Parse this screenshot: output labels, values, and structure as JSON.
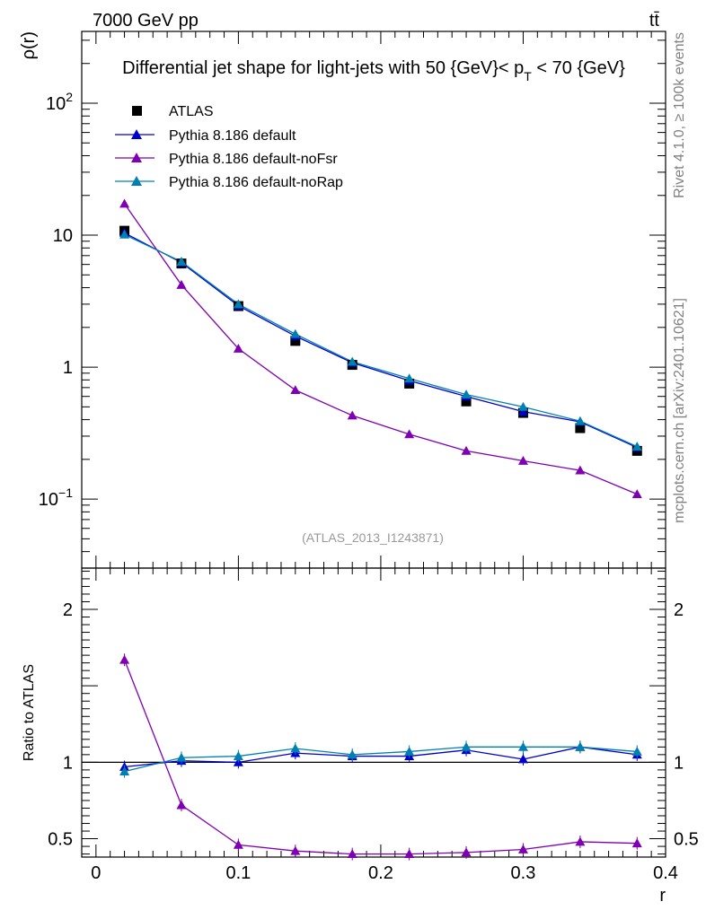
{
  "header": {
    "left": "7000 GeV pp",
    "right": "tt̄"
  },
  "side_labels": {
    "rivet": "Rivet 4.1.0, ≥ 100k events",
    "mcplots": "mcplots.cern.ch [arXiv:2401.10621]"
  },
  "chart_data": [
    {
      "type": "line",
      "panel": "main",
      "title": "Differential jet shape for light-jets with 50 {GeV}< p_T < 70 {GeV}",
      "title_parts": {
        "pre": "Differential jet shape for light-jets with 50 {GeV}< p",
        "sub": "T",
        "post": " < 70 {GeV}"
      },
      "xlabel": "r",
      "ylabel": "ρ(r)",
      "yscale": "log",
      "xlim": [
        -0.01,
        0.4
      ],
      "ylim": [
        0.03,
        350
      ],
      "annotation": "(ATLAS_2013_I1243871)",
      "x_ticks": [
        0,
        0.1,
        0.2,
        0.3,
        0.4
      ],
      "y_tick_labels": [
        {
          "value": 0.1,
          "mantissa": "10",
          "exp": "−1"
        },
        {
          "value": 1,
          "text": "1"
        },
        {
          "value": 10,
          "text": "10"
        },
        {
          "value": 100,
          "mantissa": "10",
          "exp": "2"
        }
      ],
      "x": [
        0.02,
        0.06,
        0.1,
        0.14,
        0.18,
        0.22,
        0.26,
        0.3,
        0.34,
        0.38
      ],
      "series": [
        {
          "name": "ATLAS",
          "marker": "square",
          "color": "#000000",
          "values": [
            10.8,
            6.1,
            2.9,
            1.58,
            1.04,
            0.75,
            0.55,
            0.45,
            0.345,
            0.232
          ]
        },
        {
          "name": "Pythia 8.186 default",
          "marker": "triangle",
          "color": "#0000cc",
          "values": [
            10.4,
            6.2,
            2.92,
            1.72,
            1.08,
            0.79,
            0.6,
            0.46,
            0.385,
            0.246
          ]
        },
        {
          "name": "Pythia 8.186 default-noFsr",
          "marker": "triangle",
          "color": "#7f00b2",
          "values": [
            17.3,
            4.2,
            1.38,
            0.67,
            0.43,
            0.31,
            0.232,
            0.195,
            0.165,
            0.109
          ]
        },
        {
          "name": "Pythia 8.186 default-noRap",
          "marker": "triangle",
          "color": "#0080b2",
          "values": [
            10.1,
            6.3,
            3.0,
            1.78,
            1.1,
            0.82,
            0.62,
            0.5,
            0.39,
            0.25
          ]
        }
      ]
    },
    {
      "type": "line",
      "panel": "ratio",
      "xlabel": "r",
      "ylabel": "Ratio to ATLAS",
      "xlim": [
        -0.01,
        0.4
      ],
      "ylim": [
        0.38,
        2.27
      ],
      "reference_line": 1,
      "x_ticks": [
        0,
        0.1,
        0.2,
        0.3,
        0.4
      ],
      "y_tick_labels": [
        {
          "value": 0.5,
          "text": "0.5"
        },
        {
          "value": 1,
          "text": "1"
        },
        {
          "value": 2,
          "text": "2"
        }
      ],
      "x": [
        0.02,
        0.06,
        0.1,
        0.14,
        0.18,
        0.22,
        0.26,
        0.3,
        0.34,
        0.38
      ],
      "series": [
        {
          "name": "Pythia 8.186 default",
          "marker": "triangle",
          "color": "#0000cc",
          "values": [
            0.97,
            1.01,
            1.0,
            1.06,
            1.04,
            1.04,
            1.08,
            1.02,
            1.1,
            1.05
          ]
        },
        {
          "name": "Pythia 8.186 default-noFsr",
          "marker": "triangle",
          "color": "#7f00b2",
          "values": [
            1.67,
            0.72,
            0.46,
            0.42,
            0.4,
            0.4,
            0.41,
            0.43,
            0.48,
            0.47
          ]
        },
        {
          "name": "Pythia 8.186 default-noRap",
          "marker": "triangle",
          "color": "#0080b2",
          "values": [
            0.94,
            1.03,
            1.04,
            1.09,
            1.05,
            1.07,
            1.1,
            1.1,
            1.1,
            1.07
          ]
        }
      ]
    }
  ]
}
